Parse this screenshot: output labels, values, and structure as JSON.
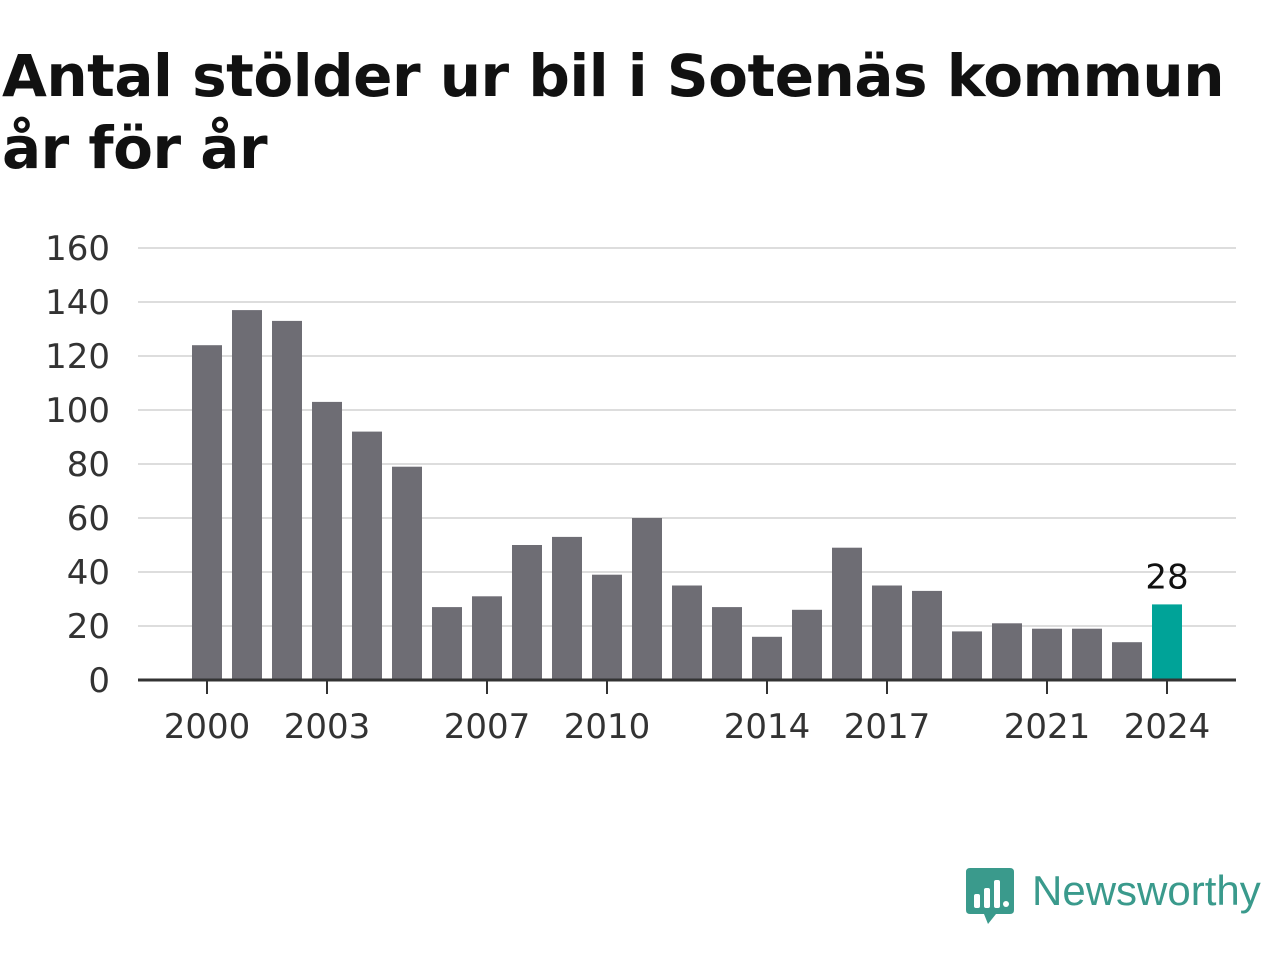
{
  "chart_data": {
    "type": "bar",
    "title": "Antal stölder ur bil i Sotenäs kommun år för år",
    "categories": [
      "2000",
      "2001",
      "2002",
      "2003",
      "2004",
      "2005",
      "2006",
      "2007",
      "2008",
      "2009",
      "2010",
      "2011",
      "2012",
      "2013",
      "2014",
      "2015",
      "2016",
      "2017",
      "2018",
      "2019",
      "2020",
      "2021",
      "2022",
      "2023",
      "2024"
    ],
    "values": [
      124,
      137,
      133,
      103,
      92,
      79,
      27,
      31,
      50,
      53,
      39,
      60,
      35,
      27,
      16,
      26,
      49,
      35,
      33,
      18,
      21,
      19,
      19,
      14,
      28
    ],
    "x_tick_labels": [
      "2000",
      "2003",
      "2007",
      "2010",
      "2014",
      "2017",
      "2021",
      "2024"
    ],
    "y_tick_labels": [
      "0",
      "20",
      "40",
      "60",
      "80",
      "100",
      "120",
      "140",
      "160"
    ],
    "ylim": [
      0,
      160
    ],
    "grid": true,
    "highlight": {
      "category": "2024",
      "label": "28"
    },
    "colors": {
      "bar": "#6e6d74",
      "highlight": "#00a398",
      "grid": "#dddddd",
      "axis": "#333333",
      "tick_text": "#333333"
    }
  },
  "brand": {
    "name": "Newsworthy",
    "color": "#3a9a8c"
  }
}
